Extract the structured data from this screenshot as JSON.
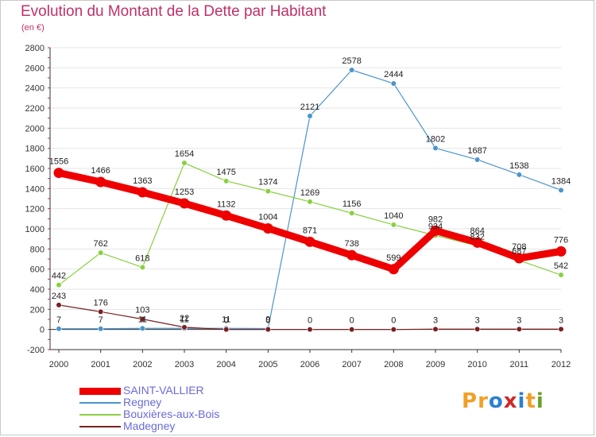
{
  "header": {
    "title": "Evolution du Montant de la Dette par Habitant",
    "subtitle": "(en €)"
  },
  "logo": {
    "text": "Proxiti",
    "letter_colors": [
      "#f0a028",
      "#f0a028",
      "#2a7fd4",
      "#d02828",
      "#2a7fd4",
      "#f0a028",
      "#6aa02a"
    ]
  },
  "colors": {
    "axis": "#333333",
    "grid": "#e6e6e6",
    "zero_line": "#333333",
    "y_minor_tick": "#c0306a"
  },
  "chart_data": {
    "type": "line",
    "x": [
      "2000",
      "2001",
      "2002",
      "2003",
      "2004",
      "2005",
      "2006",
      "2007",
      "2008",
      "2009",
      "2010",
      "2011",
      "2012"
    ],
    "ylim": [
      -200,
      2800
    ],
    "yticks": [
      -200,
      0,
      200,
      400,
      600,
      800,
      1000,
      1200,
      1400,
      1600,
      1800,
      2000,
      2200,
      2400,
      2600,
      2800
    ],
    "grid": true,
    "legend_position": "bottom-left",
    "series": [
      {
        "name": "SAINT-VALLIER",
        "color": "#ee0000",
        "thick": true,
        "values": [
          1556,
          1466,
          1363,
          1253,
          1132,
          1004,
          871,
          738,
          599,
          982,
          864,
          708,
          776
        ],
        "labels": [
          "1556",
          "1466",
          "1363",
          "1253",
          "1132",
          "1004",
          "871",
          "738",
          "599",
          "982",
          "864",
          "708",
          "776"
        ]
      },
      {
        "name": "Regney",
        "color": "#4b94cc",
        "thick": false,
        "values": [
          7,
          7,
          11,
          11,
          11,
          9,
          2121,
          2578,
          2444,
          1802,
          1687,
          1538,
          1384
        ],
        "labels": [
          "7",
          "7",
          "11",
          "11",
          "11",
          "9",
          "2121",
          "2578",
          "2444",
          "1802",
          "1687",
          "1538",
          "1384"
        ]
      },
      {
        "name": "Bouxières-aux-Bois",
        "color": "#88d040",
        "thick": false,
        "values": [
          442,
          762,
          618,
          1654,
          1475,
          1374,
          1269,
          1156,
          1040,
          934,
          832,
          687,
          542
        ],
        "labels": [
          "442",
          "762",
          "618",
          "1654",
          "1475",
          "1374",
          "1269",
          "1156",
          "1040",
          "934",
          "832",
          "687",
          "542"
        ]
      },
      {
        "name": "Madegney",
        "color": "#7a2020",
        "thick": false,
        "values": [
          243,
          176,
          103,
          22,
          0,
          0,
          0,
          0,
          0,
          3,
          3,
          3,
          3
        ],
        "labels": [
          "243",
          "176",
          "103",
          "22",
          "0",
          "0",
          "0",
          "0",
          "0",
          "3",
          "3",
          "3",
          "3"
        ]
      }
    ]
  }
}
